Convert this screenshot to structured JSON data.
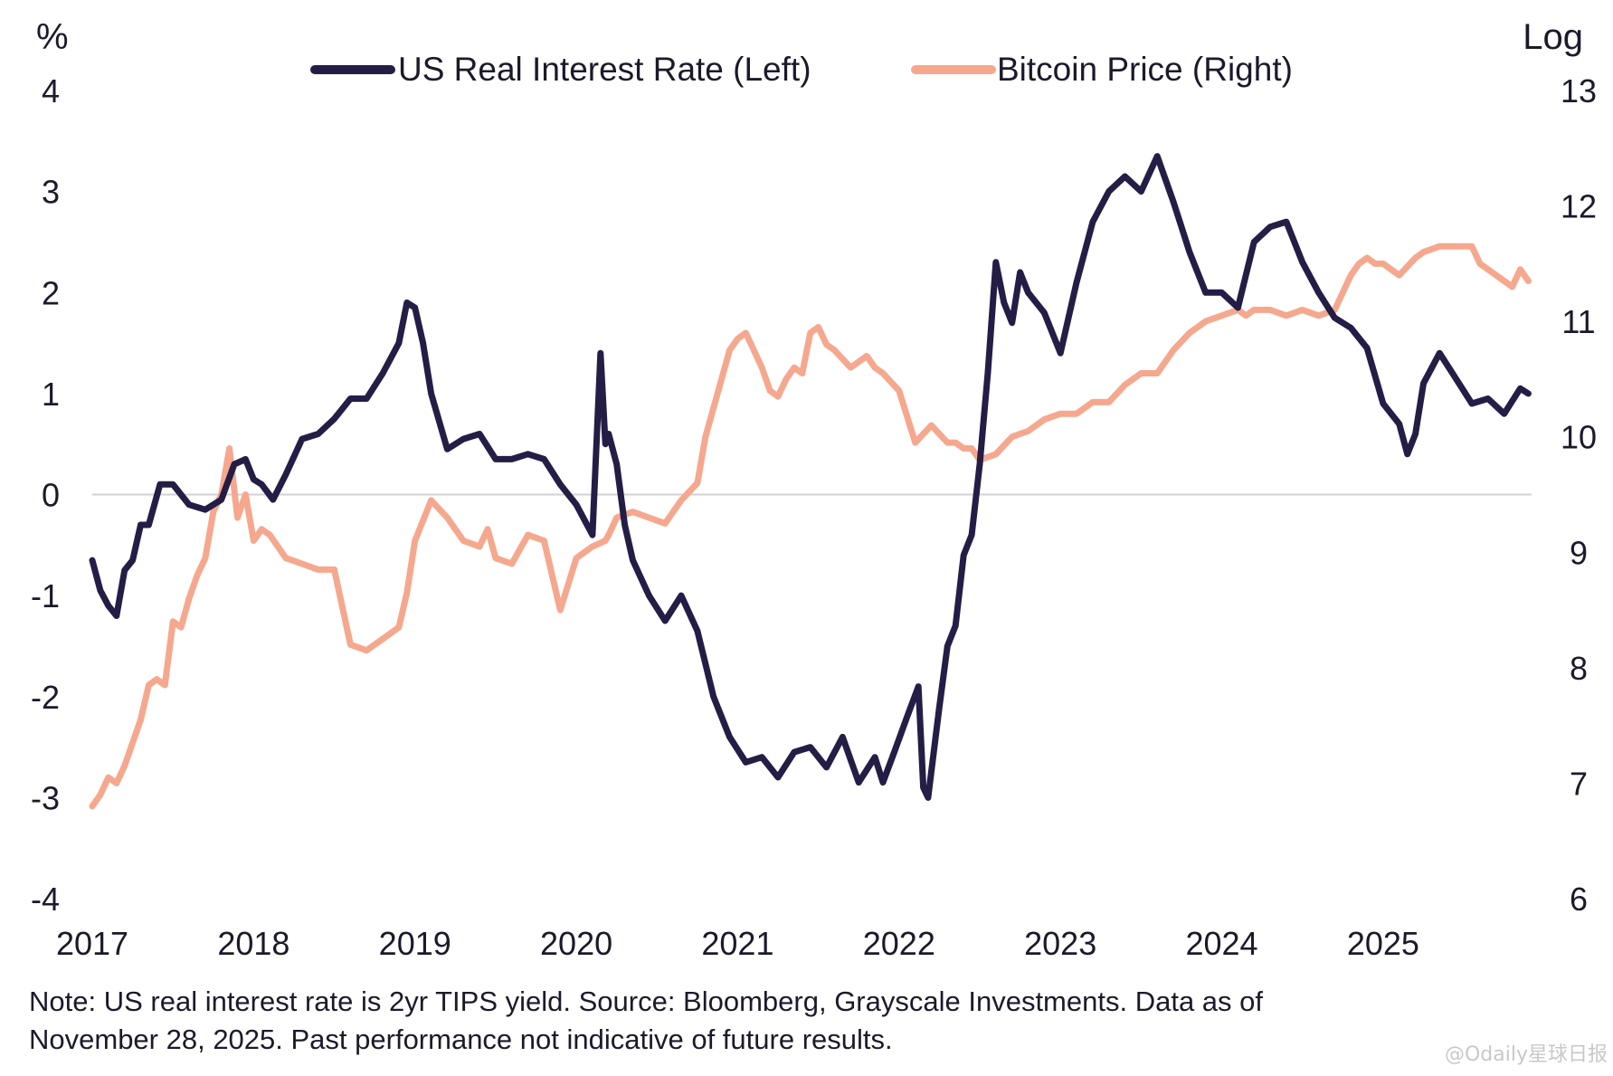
{
  "chart_data": {
    "type": "line",
    "left_axis_unit": "%",
    "right_axis_unit": "Log",
    "left_axis": {
      "ylim": [
        -4,
        4
      ],
      "ticks": [
        "4",
        "3",
        "2",
        "1",
        "0",
        "-1",
        "-2",
        "-3",
        "-4"
      ]
    },
    "right_axis": {
      "ylim": [
        6,
        13
      ],
      "ticks": [
        "13",
        "12",
        "11",
        "10",
        "9",
        "8",
        "7",
        "6"
      ]
    },
    "x_axis": {
      "xlim": [
        2017.0,
        2025.92
      ],
      "ticks": [
        "2017",
        "2018",
        "2019",
        "2020",
        "2021",
        "2022",
        "2023",
        "2024",
        "2025"
      ]
    },
    "zero_line": true,
    "grid": false,
    "legend_position": "top",
    "series": [
      {
        "name": "US Real Interest Rate (Left)",
        "axis": "left",
        "color": "#241d45",
        "x": [
          2017.0,
          2017.05,
          2017.1,
          2017.15,
          2017.2,
          2017.25,
          2017.3,
          2017.35,
          2017.42,
          2017.5,
          2017.6,
          2017.7,
          2017.8,
          2017.88,
          2017.95,
          2018.0,
          2018.05,
          2018.12,
          2018.2,
          2018.3,
          2018.4,
          2018.5,
          2018.6,
          2018.7,
          2018.8,
          2018.9,
          2018.95,
          2019.0,
          2019.05,
          2019.1,
          2019.2,
          2019.3,
          2019.4,
          2019.5,
          2019.6,
          2019.7,
          2019.8,
          2019.9,
          2020.0,
          2020.1,
          2020.15,
          2020.18,
          2020.2,
          2020.25,
          2020.3,
          2020.35,
          2020.45,
          2020.55,
          2020.65,
          2020.75,
          2020.85,
          2020.95,
          2021.05,
          2021.15,
          2021.25,
          2021.35,
          2021.45,
          2021.55,
          2021.65,
          2021.75,
          2021.85,
          2021.9,
          2021.97,
          2022.05,
          2022.12,
          2022.15,
          2022.18,
          2022.25,
          2022.3,
          2022.35,
          2022.4,
          2022.45,
          2022.5,
          2022.55,
          2022.6,
          2022.65,
          2022.7,
          2022.75,
          2022.8,
          2022.9,
          2023.0,
          2023.1,
          2023.2,
          2023.3,
          2023.4,
          2023.5,
          2023.6,
          2023.7,
          2023.75,
          2023.8,
          2023.9,
          2024.0,
          2024.1,
          2024.2,
          2024.3,
          2024.4,
          2024.5,
          2024.6,
          2024.7,
          2024.8,
          2024.9,
          2025.0,
          2025.1,
          2025.15,
          2025.2,
          2025.25,
          2025.35,
          2025.45,
          2025.55,
          2025.65,
          2025.75,
          2025.85,
          2025.9
        ],
        "values": [
          -0.65,
          -0.95,
          -1.1,
          -1.2,
          -0.75,
          -0.65,
          -0.3,
          -0.3,
          0.1,
          0.1,
          -0.1,
          -0.15,
          -0.05,
          0.3,
          0.35,
          0.15,
          0.1,
          -0.05,
          0.2,
          0.55,
          0.6,
          0.75,
          0.95,
          0.95,
          1.2,
          1.5,
          1.9,
          1.85,
          1.5,
          1.0,
          0.45,
          0.55,
          0.6,
          0.35,
          0.35,
          0.4,
          0.35,
          0.1,
          -0.1,
          -0.4,
          1.4,
          0.5,
          0.6,
          0.3,
          -0.3,
          -0.65,
          -1.0,
          -1.25,
          -1.0,
          -1.35,
          -2.0,
          -2.4,
          -2.65,
          -2.6,
          -2.8,
          -2.55,
          -2.5,
          -2.7,
          -2.4,
          -2.85,
          -2.6,
          -2.85,
          -2.55,
          -2.2,
          -1.9,
          -2.9,
          -3.0,
          -2.1,
          -1.5,
          -1.3,
          -0.6,
          -0.4,
          0.3,
          1.2,
          2.3,
          1.9,
          1.7,
          2.2,
          2.0,
          1.8,
          1.4,
          2.1,
          2.7,
          3.0,
          3.15,
          3.0,
          3.35,
          2.9,
          2.65,
          2.4,
          2.0,
          2.0,
          1.85,
          2.5,
          2.65,
          2.7,
          2.3,
          2.0,
          1.75,
          1.65,
          1.45,
          0.9,
          0.7,
          0.4,
          0.6,
          1.1,
          1.4,
          1.15,
          0.9,
          0.95,
          0.8,
          1.05,
          1.0
        ]
      },
      {
        "name": "Bitcoin Price (Right)",
        "axis": "right",
        "color": "#f5a88e",
        "x": [
          2017.0,
          2017.05,
          2017.1,
          2017.15,
          2017.2,
          2017.25,
          2017.3,
          2017.35,
          2017.4,
          2017.45,
          2017.5,
          2017.55,
          2017.6,
          2017.65,
          2017.7,
          2017.75,
          2017.8,
          2017.85,
          2017.9,
          2017.95,
          2018.0,
          2018.05,
          2018.1,
          2018.15,
          2018.2,
          2018.3,
          2018.4,
          2018.5,
          2018.6,
          2018.7,
          2018.8,
          2018.85,
          2018.9,
          2018.95,
          2019.0,
          2019.1,
          2019.2,
          2019.3,
          2019.4,
          2019.45,
          2019.5,
          2019.6,
          2019.7,
          2019.8,
          2019.9,
          2020.0,
          2020.1,
          2020.18,
          2020.2,
          2020.25,
          2020.35,
          2020.45,
          2020.55,
          2020.65,
          2020.75,
          2020.8,
          2020.85,
          2020.9,
          2020.95,
          2021.0,
          2021.05,
          2021.1,
          2021.15,
          2021.2,
          2021.25,
          2021.3,
          2021.35,
          2021.4,
          2021.45,
          2021.5,
          2021.55,
          2021.6,
          2021.7,
          2021.8,
          2021.85,
          2021.9,
          2022.0,
          2022.1,
          2022.2,
          2022.3,
          2022.35,
          2022.4,
          2022.45,
          2022.5,
          2022.6,
          2022.7,
          2022.8,
          2022.85,
          2022.9,
          2023.0,
          2023.1,
          2023.2,
          2023.3,
          2023.4,
          2023.5,
          2023.6,
          2023.7,
          2023.8,
          2023.9,
          2024.0,
          2024.1,
          2024.15,
          2024.2,
          2024.3,
          2024.4,
          2024.5,
          2024.6,
          2024.7,
          2024.75,
          2024.8,
          2024.85,
          2024.9,
          2024.95,
          2025.0,
          2025.1,
          2025.2,
          2025.25,
          2025.35,
          2025.45,
          2025.55,
          2025.6,
          2025.7,
          2025.8,
          2025.85,
          2025.9
        ],
        "values": [
          6.8,
          6.9,
          7.05,
          7.0,
          7.15,
          7.35,
          7.55,
          7.85,
          7.9,
          7.85,
          8.4,
          8.35,
          8.6,
          8.8,
          8.95,
          9.35,
          9.5,
          9.9,
          9.3,
          9.5,
          9.1,
          9.2,
          9.15,
          9.05,
          8.95,
          8.9,
          8.85,
          8.85,
          8.2,
          8.15,
          8.25,
          8.3,
          8.35,
          8.65,
          9.1,
          9.45,
          9.3,
          9.1,
          9.05,
          9.2,
          8.95,
          8.9,
          9.15,
          9.1,
          8.5,
          8.95,
          9.05,
          9.1,
          9.15,
          9.3,
          9.35,
          9.3,
          9.25,
          9.45,
          9.6,
          10.0,
          10.25,
          10.5,
          10.75,
          10.85,
          10.9,
          10.75,
          10.6,
          10.4,
          10.35,
          10.5,
          10.6,
          10.55,
          10.9,
          10.95,
          10.8,
          10.75,
          10.6,
          10.7,
          10.6,
          10.55,
          10.4,
          9.95,
          10.1,
          9.95,
          9.95,
          9.9,
          9.9,
          9.8,
          9.85,
          10.0,
          10.05,
          10.1,
          10.15,
          10.2,
          10.2,
          10.3,
          10.3,
          10.45,
          10.55,
          10.55,
          10.75,
          10.9,
          11.0,
          11.05,
          11.1,
          11.05,
          11.1,
          11.1,
          11.05,
          11.1,
          11.05,
          11.1,
          11.25,
          11.4,
          11.5,
          11.55,
          11.5,
          11.5,
          11.4,
          11.55,
          11.6,
          11.65,
          11.65,
          11.65,
          11.5,
          11.4,
          11.3,
          11.45,
          11.35
        ]
      }
    ]
  },
  "note": {
    "line1": "Note: US real interest rate is 2yr TIPS yield. Source: Bloomberg, Grayscale Investments. Data as of",
    "line2": "November 28, 2025. Past performance not indicative of future results."
  },
  "watermark": "@Odaily星球日报"
}
